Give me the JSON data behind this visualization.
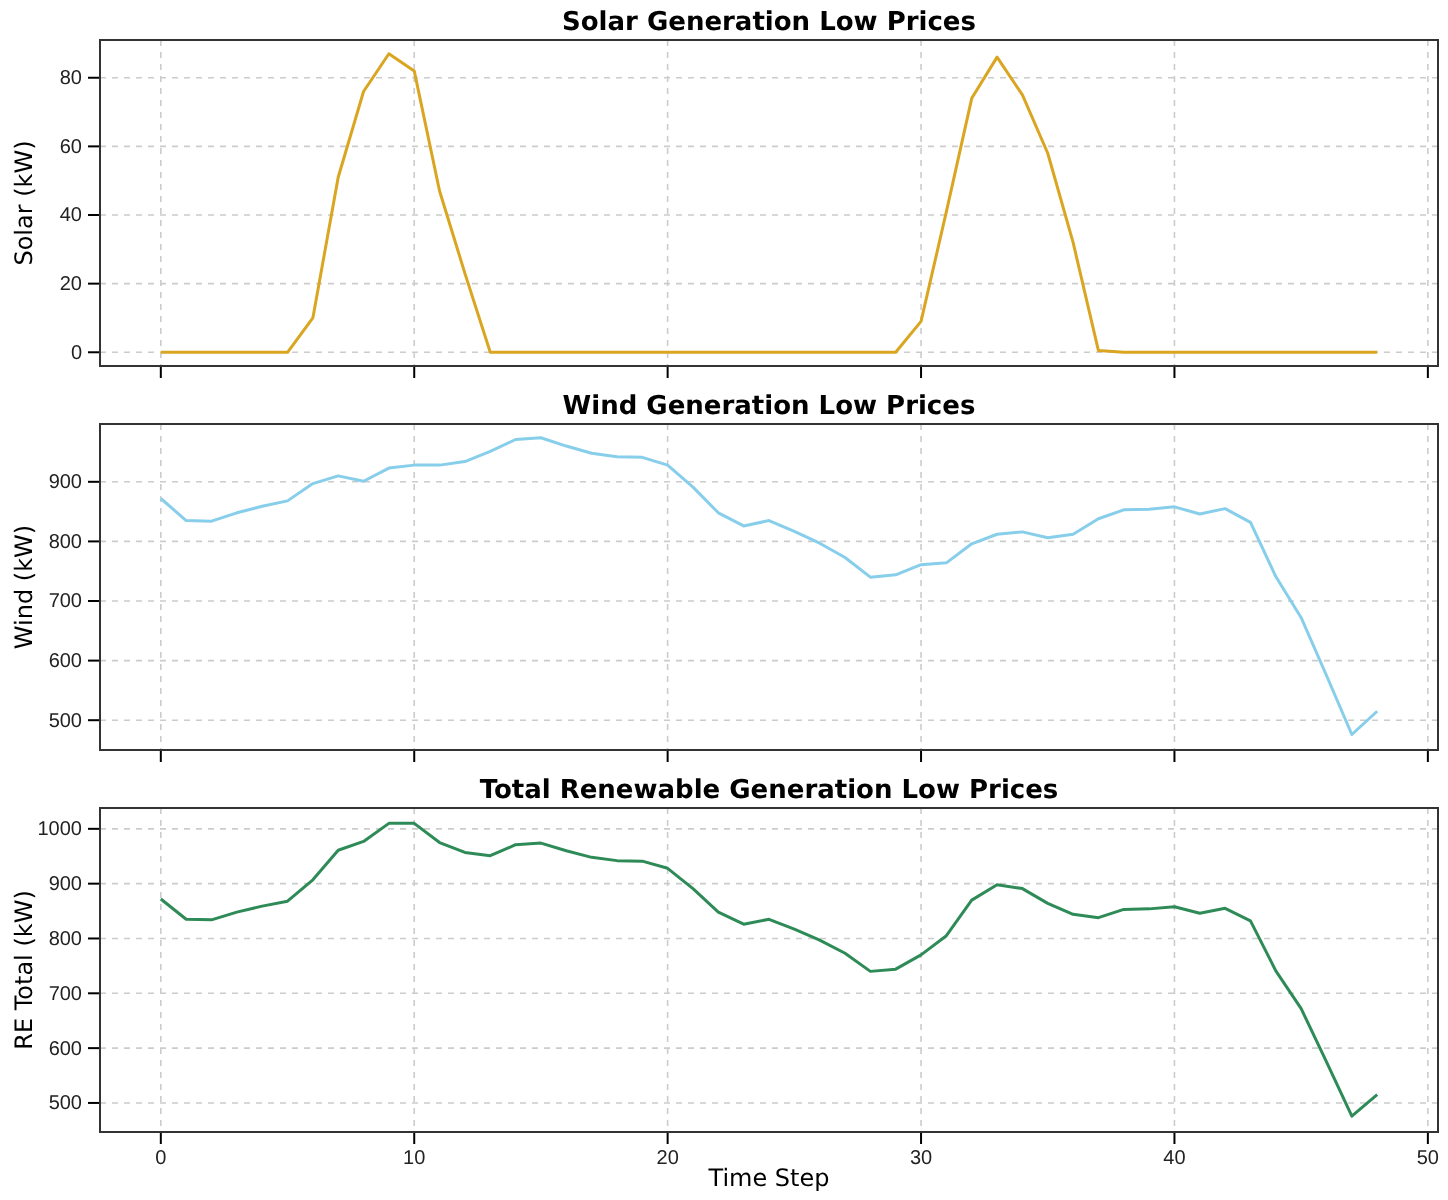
{
  "chart_data": [
    {
      "type": "line",
      "title": "Solar Generation Low Prices",
      "ylabel": "Solar (kW)",
      "x": [
        0,
        1,
        2,
        3,
        4,
        5,
        6,
        7,
        8,
        9,
        10,
        11,
        12,
        13,
        14,
        15,
        16,
        17,
        18,
        19,
        20,
        21,
        22,
        23,
        24,
        25,
        26,
        27,
        28,
        29,
        30,
        31,
        32,
        33,
        34,
        35,
        36,
        37,
        38,
        39,
        40,
        41,
        42,
        43,
        44,
        45,
        46,
        47,
        48
      ],
      "series": [
        {
          "color": "#daa520",
          "values": [
            0,
            0,
            0,
            0,
            0,
            0,
            10,
            51,
            76,
            87,
            82,
            47,
            23,
            0,
            0,
            0,
            0,
            0,
            0,
            0,
            0,
            0,
            0,
            0,
            0,
            0,
            0,
            0,
            0,
            0,
            9,
            41,
            74,
            86,
            75,
            58,
            32,
            0.5,
            0,
            0,
            0,
            0,
            0,
            0,
            0,
            0,
            0,
            0,
            0
          ]
        }
      ],
      "xlim": [
        -2.4,
        50.4
      ],
      "xticks": [
        0,
        10,
        20,
        30,
        40,
        50
      ],
      "ylim": [
        -4,
        91
      ],
      "yticks": [
        0,
        20,
        40,
        60,
        80
      ],
      "tick_labels": "y",
      "grid": true
    },
    {
      "type": "line",
      "title": "Wind Generation Low Prices",
      "ylabel": "Wind (kW)",
      "x": [
        0,
        1,
        2,
        3,
        4,
        5,
        6,
        7,
        8,
        9,
        10,
        11,
        12,
        13,
        14,
        15,
        16,
        17,
        18,
        19,
        20,
        21,
        22,
        23,
        24,
        25,
        26,
        27,
        28,
        29,
        30,
        31,
        32,
        33,
        34,
        35,
        36,
        37,
        38,
        39,
        40,
        41,
        42,
        43,
        44,
        45,
        46,
        47,
        48
      ],
      "series": [
        {
          "color": "#87ceeb",
          "values": [
            872,
            835,
            834,
            848,
            859,
            868,
            897,
            910,
            901,
            923,
            928,
            928,
            934,
            951,
            971,
            974,
            960,
            948,
            942,
            941,
            928,
            891,
            848,
            826,
            835,
            817,
            797,
            773,
            740,
            744,
            761,
            764,
            796,
            812,
            816,
            806,
            812,
            838,
            853,
            854,
            858,
            846,
            855,
            832,
            741,
            672,
            575,
            476,
            515
          ]
        }
      ],
      "xlim": [
        -2.4,
        50.4
      ],
      "xticks": [
        0,
        10,
        20,
        30,
        40,
        50
      ],
      "ylim": [
        450,
        997
      ],
      "yticks": [
        500,
        600,
        700,
        800,
        900
      ],
      "tick_labels": "y",
      "grid": true
    },
    {
      "type": "line",
      "title": "Total Renewable Generation Low Prices",
      "xlabel": "Time Step",
      "ylabel": "RE Total (kW)",
      "x": [
        0,
        1,
        2,
        3,
        4,
        5,
        6,
        7,
        8,
        9,
        10,
        11,
        12,
        13,
        14,
        15,
        16,
        17,
        18,
        19,
        20,
        21,
        22,
        23,
        24,
        25,
        26,
        27,
        28,
        29,
        30,
        31,
        32,
        33,
        34,
        35,
        36,
        37,
        38,
        39,
        40,
        41,
        42,
        43,
        44,
        45,
        46,
        47,
        48
      ],
      "series": [
        {
          "color": "#2e8b57",
          "values": [
            872,
            835,
            834,
            848,
            859,
            868,
            907,
            961,
            977,
            1010,
            1010,
            975,
            957,
            951,
            971,
            974,
            960,
            948,
            942,
            941,
            928,
            891,
            848,
            826,
            835,
            817,
            797,
            773,
            740,
            744,
            770,
            805,
            870,
            898,
            891,
            864,
            844,
            838,
            853,
            854,
            858,
            846,
            855,
            832,
            741,
            672,
            575,
            476,
            515
          ]
        }
      ],
      "xlim": [
        -2.4,
        50.4
      ],
      "xticks": [
        0,
        10,
        20,
        30,
        40,
        50
      ],
      "ylim": [
        447,
        1038
      ],
      "yticks": [
        500,
        600,
        700,
        800,
        900,
        1000
      ],
      "grid": true
    }
  ]
}
